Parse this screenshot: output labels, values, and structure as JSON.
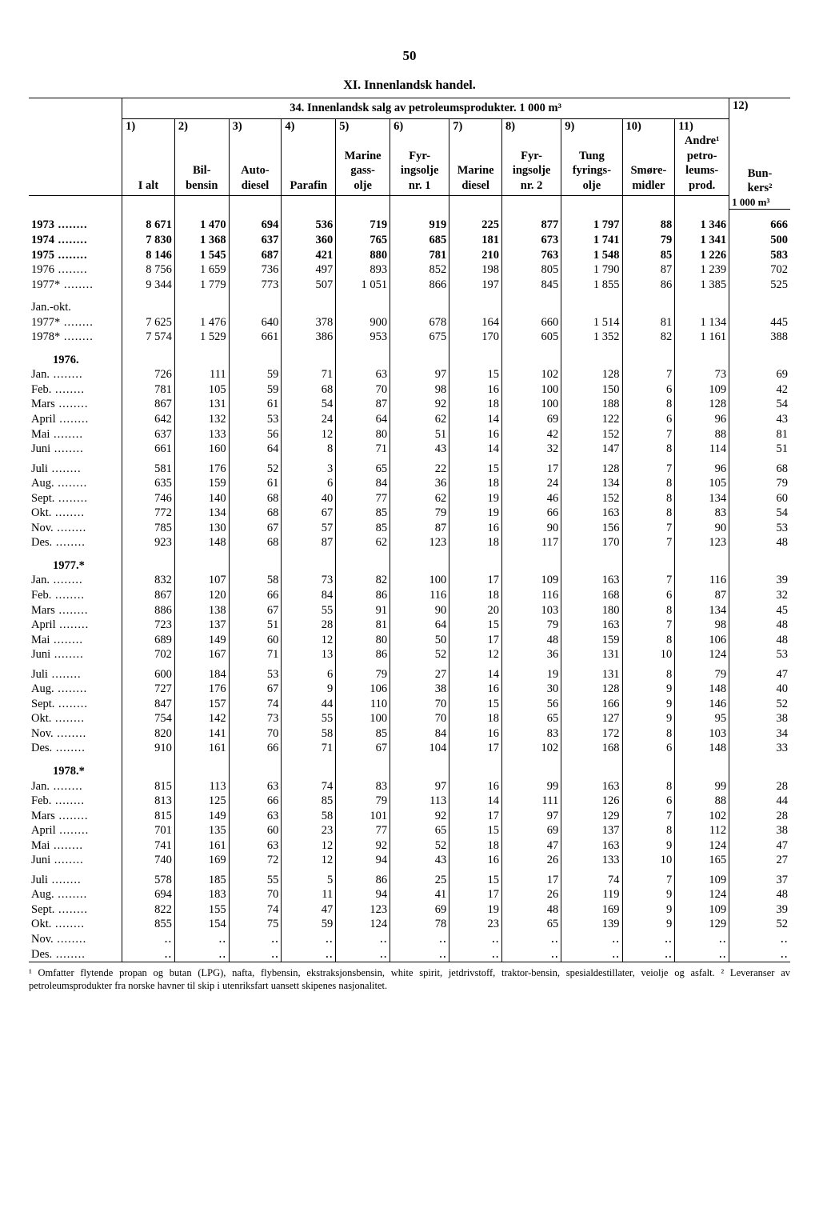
{
  "page_number": "50",
  "section_title": "XI. Innenlandsk handel.",
  "table_title": "34. Innenlandsk salg av petroleumsprodukter. 1 000 m³",
  "col12_top": "12)",
  "columns": {
    "num": [
      "1)",
      "2)",
      "3)",
      "4)",
      "5)",
      "6)",
      "7)",
      "8)",
      "9)",
      "10)",
      "11)"
    ],
    "lbl1": [
      "",
      "",
      "",
      "",
      "Marine",
      "Fyr-",
      "",
      "Fyr-",
      "Tung",
      "",
      "Andre¹"
    ],
    "lbl2": [
      "I alt",
      "Bil-",
      "Auto-",
      "Parafin",
      "gass-",
      "ingsolje",
      "Marine",
      "ingsolje",
      "fyrings-",
      "Smøre-",
      "petro-"
    ],
    "lbl3": [
      "",
      "bensin",
      "diesel",
      "",
      "olje",
      "nr. 1",
      "diesel",
      "nr. 2",
      "olje",
      "midler",
      "leums-"
    ],
    "lbl4": [
      "",
      "",
      "",
      "",
      "",
      "",
      "",
      "",
      "",
      "",
      "prod."
    ],
    "c12a": "Bun-",
    "c12b": "kers²",
    "c12c": "1 000 m³"
  },
  "rows": [
    {
      "type": "spacer"
    },
    {
      "label": "1973",
      "bold": true,
      "dots": true,
      "v": [
        "8 671",
        "1 470",
        "694",
        "536",
        "719",
        "919",
        "225",
        "877",
        "1 797",
        "88",
        "1 346",
        "666"
      ]
    },
    {
      "label": "1974",
      "bold": true,
      "dots": true,
      "v": [
        "7 830",
        "1 368",
        "637",
        "360",
        "765",
        "685",
        "181",
        "673",
        "1 741",
        "79",
        "1 341",
        "500"
      ]
    },
    {
      "label": "1975",
      "bold": true,
      "dots": true,
      "v": [
        "8 146",
        "1 545",
        "687",
        "421",
        "880",
        "781",
        "210",
        "763",
        "1 548",
        "85",
        "1 226",
        "583"
      ]
    },
    {
      "label": "1976",
      "bold": false,
      "dots": true,
      "v": [
        "8 756",
        "1 659",
        "736",
        "497",
        "893",
        "852",
        "198",
        "805",
        "1 790",
        "87",
        "1 239",
        "702"
      ]
    },
    {
      "label": "1977*",
      "bold": false,
      "dots": true,
      "v": [
        "9 344",
        "1 779",
        "773",
        "507",
        "1 051",
        "866",
        "197",
        "845",
        "1 855",
        "86",
        "1 385",
        "525"
      ]
    },
    {
      "type": "spacer"
    },
    {
      "label": "Jan.-okt.",
      "plain": true
    },
    {
      "label": "1977*",
      "dots": true,
      "v": [
        "7 625",
        "1 476",
        "640",
        "378",
        "900",
        "678",
        "164",
        "660",
        "1 514",
        "81",
        "1 134",
        "445"
      ]
    },
    {
      "label": "1978*",
      "dots": true,
      "v": [
        "7 574",
        "1 529",
        "661",
        "386",
        "953",
        "675",
        "170",
        "605",
        "1 352",
        "82",
        "1 161",
        "388"
      ]
    },
    {
      "type": "spacer"
    },
    {
      "type": "section",
      "label": "1976."
    },
    {
      "label": "Jan.",
      "dots": true,
      "v": [
        "726",
        "111",
        "59",
        "71",
        "63",
        "97",
        "15",
        "102",
        "128",
        "7",
        "73",
        "69"
      ]
    },
    {
      "label": "Feb.",
      "dots": true,
      "v": [
        "781",
        "105",
        "59",
        "68",
        "70",
        "98",
        "16",
        "100",
        "150",
        "6",
        "109",
        "42"
      ]
    },
    {
      "label": "Mars",
      "dots": true,
      "v": [
        "867",
        "131",
        "61",
        "54",
        "87",
        "92",
        "18",
        "100",
        "188",
        "8",
        "128",
        "54"
      ]
    },
    {
      "label": "April",
      "dots": true,
      "v": [
        "642",
        "132",
        "53",
        "24",
        "64",
        "62",
        "14",
        "69",
        "122",
        "6",
        "96",
        "43"
      ]
    },
    {
      "label": "Mai",
      "dots": true,
      "v": [
        "637",
        "133",
        "56",
        "12",
        "80",
        "51",
        "16",
        "42",
        "152",
        "7",
        "88",
        "81"
      ]
    },
    {
      "label": "Juni",
      "dots": true,
      "v": [
        "661",
        "160",
        "64",
        "8",
        "71",
        "43",
        "14",
        "32",
        "147",
        "8",
        "114",
        "51"
      ]
    },
    {
      "type": "mini-spacer"
    },
    {
      "label": "Juli",
      "dots": true,
      "v": [
        "581",
        "176",
        "52",
        "3",
        "65",
        "22",
        "15",
        "17",
        "128",
        "7",
        "96",
        "68"
      ]
    },
    {
      "label": "Aug.",
      "dots": true,
      "v": [
        "635",
        "159",
        "61",
        "6",
        "84",
        "36",
        "18",
        "24",
        "134",
        "8",
        "105",
        "79"
      ]
    },
    {
      "label": "Sept.",
      "dots": true,
      "v": [
        "746",
        "140",
        "68",
        "40",
        "77",
        "62",
        "19",
        "46",
        "152",
        "8",
        "134",
        "60"
      ]
    },
    {
      "label": "Okt.",
      "dots": true,
      "v": [
        "772",
        "134",
        "68",
        "67",
        "85",
        "79",
        "19",
        "66",
        "163",
        "8",
        "83",
        "54"
      ]
    },
    {
      "label": "Nov.",
      "dots": true,
      "v": [
        "785",
        "130",
        "67",
        "57",
        "85",
        "87",
        "16",
        "90",
        "156",
        "7",
        "90",
        "53"
      ]
    },
    {
      "label": "Des.",
      "dots": true,
      "v": [
        "923",
        "148",
        "68",
        "87",
        "62",
        "123",
        "18",
        "117",
        "170",
        "7",
        "123",
        "48"
      ]
    },
    {
      "type": "spacer"
    },
    {
      "type": "section",
      "label": "1977.*"
    },
    {
      "label": "Jan.",
      "dots": true,
      "v": [
        "832",
        "107",
        "58",
        "73",
        "82",
        "100",
        "17",
        "109",
        "163",
        "7",
        "116",
        "39"
      ]
    },
    {
      "label": "Feb.",
      "dots": true,
      "v": [
        "867",
        "120",
        "66",
        "84",
        "86",
        "116",
        "18",
        "116",
        "168",
        "6",
        "87",
        "32"
      ]
    },
    {
      "label": "Mars",
      "dots": true,
      "v": [
        "886",
        "138",
        "67",
        "55",
        "91",
        "90",
        "20",
        "103",
        "180",
        "8",
        "134",
        "45"
      ]
    },
    {
      "label": "April",
      "dots": true,
      "v": [
        "723",
        "137",
        "51",
        "28",
        "81",
        "64",
        "15",
        "79",
        "163",
        "7",
        "98",
        "48"
      ]
    },
    {
      "label": "Mai",
      "dots": true,
      "v": [
        "689",
        "149",
        "60",
        "12",
        "80",
        "50",
        "17",
        "48",
        "159",
        "8",
        "106",
        "48"
      ]
    },
    {
      "label": "Juni",
      "dots": true,
      "v": [
        "702",
        "167",
        "71",
        "13",
        "86",
        "52",
        "12",
        "36",
        "131",
        "10",
        "124",
        "53"
      ]
    },
    {
      "type": "mini-spacer"
    },
    {
      "label": "Juli",
      "dots": true,
      "v": [
        "600",
        "184",
        "53",
        "6",
        "79",
        "27",
        "14",
        "19",
        "131",
        "8",
        "79",
        "47"
      ]
    },
    {
      "label": "Aug.",
      "dots": true,
      "v": [
        "727",
        "176",
        "67",
        "9",
        "106",
        "38",
        "16",
        "30",
        "128",
        "9",
        "148",
        "40"
      ]
    },
    {
      "label": "Sept.",
      "dots": true,
      "v": [
        "847",
        "157",
        "74",
        "44",
        "110",
        "70",
        "15",
        "56",
        "166",
        "9",
        "146",
        "52"
      ]
    },
    {
      "label": "Okt.",
      "dots": true,
      "v": [
        "754",
        "142",
        "73",
        "55",
        "100",
        "70",
        "18",
        "65",
        "127",
        "9",
        "95",
        "38"
      ]
    },
    {
      "label": "Nov.",
      "dots": true,
      "v": [
        "820",
        "141",
        "70",
        "58",
        "85",
        "84",
        "16",
        "83",
        "172",
        "8",
        "103",
        "34"
      ]
    },
    {
      "label": "Des.",
      "dots": true,
      "v": [
        "910",
        "161",
        "66",
        "71",
        "67",
        "104",
        "17",
        "102",
        "168",
        "6",
        "148",
        "33"
      ]
    },
    {
      "type": "spacer"
    },
    {
      "type": "section",
      "label": "1978.*"
    },
    {
      "label": "Jan.",
      "dots": true,
      "v": [
        "815",
        "113",
        "63",
        "74",
        "83",
        "97",
        "16",
        "99",
        "163",
        "8",
        "99",
        "28"
      ]
    },
    {
      "label": "Feb.",
      "dots": true,
      "v": [
        "813",
        "125",
        "66",
        "85",
        "79",
        "113",
        "14",
        "111",
        "126",
        "6",
        "88",
        "44"
      ]
    },
    {
      "label": "Mars",
      "dots": true,
      "v": [
        "815",
        "149",
        "63",
        "58",
        "101",
        "92",
        "17",
        "97",
        "129",
        "7",
        "102",
        "28"
      ]
    },
    {
      "label": "April",
      "dots": true,
      "v": [
        "701",
        "135",
        "60",
        "23",
        "77",
        "65",
        "15",
        "69",
        "137",
        "8",
        "112",
        "38"
      ]
    },
    {
      "label": "Mai",
      "dots": true,
      "v": [
        "741",
        "161",
        "63",
        "12",
        "92",
        "52",
        "18",
        "47",
        "163",
        "9",
        "124",
        "47"
      ]
    },
    {
      "label": "Juni",
      "dots": true,
      "v": [
        "740",
        "169",
        "72",
        "12",
        "94",
        "43",
        "16",
        "26",
        "133",
        "10",
        "165",
        "27"
      ]
    },
    {
      "type": "mini-spacer"
    },
    {
      "label": "Juli",
      "dots": true,
      "v": [
        "578",
        "185",
        "55",
        "5",
        "86",
        "25",
        "15",
        "17",
        "74",
        "7",
        "109",
        "37"
      ]
    },
    {
      "label": "Aug.",
      "dots": true,
      "v": [
        "694",
        "183",
        "70",
        "11",
        "94",
        "41",
        "17",
        "26",
        "119",
        "9",
        "124",
        "48"
      ]
    },
    {
      "label": "Sept.",
      "dots": true,
      "v": [
        "822",
        "155",
        "74",
        "47",
        "123",
        "69",
        "19",
        "48",
        "169",
        "9",
        "109",
        "39"
      ]
    },
    {
      "label": "Okt.",
      "dots": true,
      "v": [
        "855",
        "154",
        "75",
        "59",
        "124",
        "78",
        "23",
        "65",
        "139",
        "9",
        "129",
        "52"
      ]
    },
    {
      "label": "Nov.",
      "dots": true,
      "v": [
        "‥",
        "‥",
        "‥",
        "‥",
        "‥",
        "‥",
        "‥",
        "‥",
        "‥",
        "‥",
        "‥",
        "‥"
      ]
    },
    {
      "label": "Des.",
      "dots": true,
      "v": [
        "‥",
        "‥",
        "‥",
        "‥",
        "‥",
        "‥",
        "‥",
        "‥",
        "‥",
        "‥",
        "‥",
        "‥"
      ]
    }
  ],
  "footnote": "¹ Omfatter flytende propan og butan (LPG), nafta, flybensin, ekstraksjonsbensin, white spirit, jetdrivstoff, traktor-bensin, spesialdestillater, veiolje og asfalt.  ² Leveranser av petroleumsprodukter fra norske havner til skip i utenriksfart uansett skipenes nasjonalitet."
}
